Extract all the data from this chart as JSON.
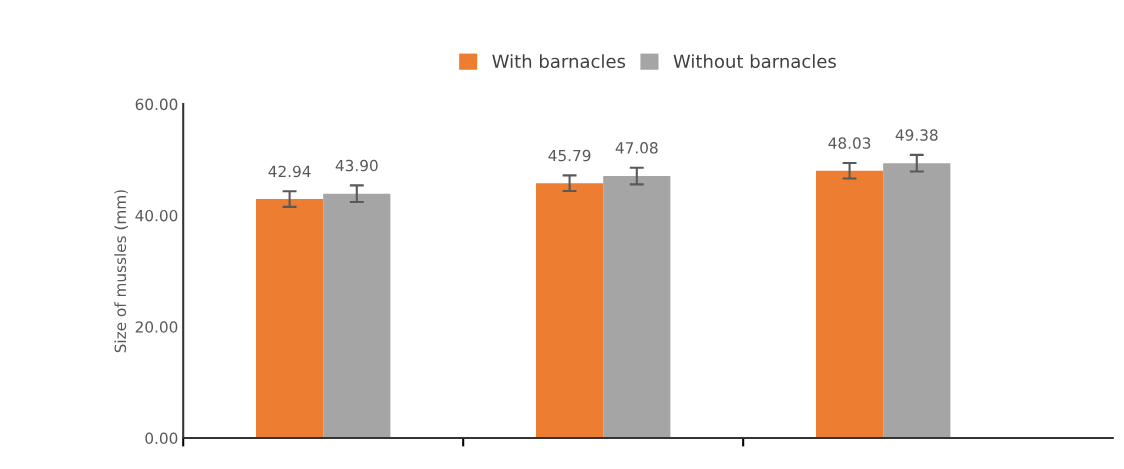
{
  "chart_data": {
    "type": "bar",
    "ylabel": "Size of mussles (mm)",
    "categories": [
      null,
      null,
      null
    ],
    "series": [
      {
        "name": "With barnacles",
        "color": "#ed7d31",
        "values": [
          42.94,
          45.79,
          48.03
        ],
        "value_labels": [
          "42.94",
          "45.79",
          "48.03"
        ],
        "errors": [
          1.4,
          1.4,
          1.4
        ]
      },
      {
        "name": "Without barnacles",
        "color": "#a5a5a5",
        "values": [
          43.9,
          47.08,
          49.38
        ],
        "value_labels": [
          "43.90",
          "47.08",
          "49.38"
        ],
        "errors": [
          1.5,
          1.5,
          1.5
        ]
      }
    ],
    "ylim": [
      0,
      60
    ],
    "yticks": [
      {
        "value": 0,
        "label": "0.00"
      },
      {
        "value": 20,
        "label": "20.00"
      },
      {
        "value": 40,
        "label": "40.00"
      },
      {
        "value": 60,
        "label": "60.00"
      }
    ],
    "grid": false,
    "legend": "top"
  }
}
